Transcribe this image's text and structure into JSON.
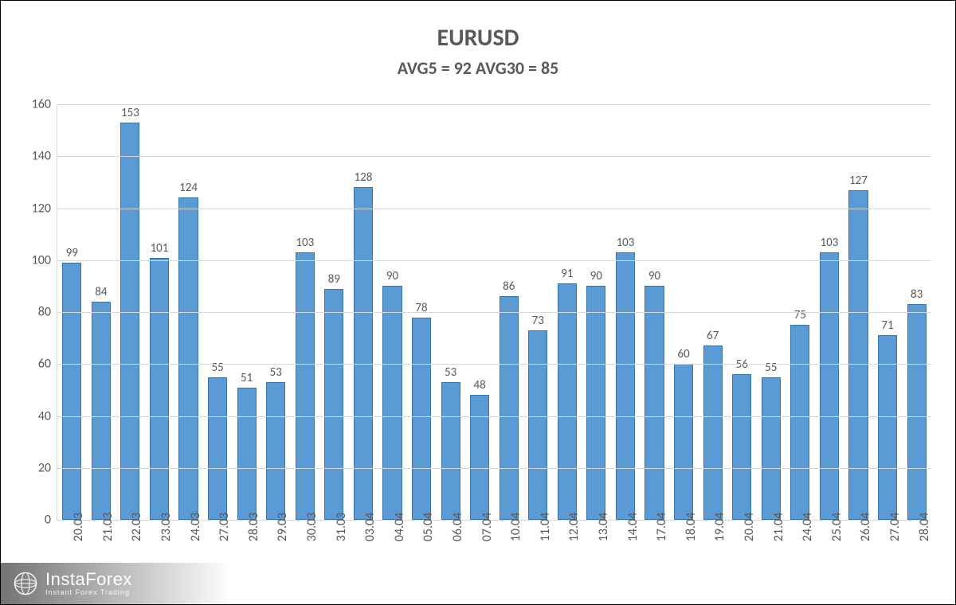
{
  "chart": {
    "type": "bar",
    "title": "EURUSD",
    "title_fontsize": 30,
    "title_color": "#595959",
    "subtitle": "AVG5 = 92 AVG30 = 85",
    "subtitle_fontsize": 22,
    "subtitle_color": "#595959",
    "background_color": "#ffffff",
    "grid_color": "#d9d9d9",
    "axis_color": "#d9d9d9",
    "tick_font_color": "#595959",
    "tick_fontsize": 16,
    "label_font_color": "#595959",
    "label_fontsize": 15,
    "bar_fill": "#5b9bd5",
    "bar_border": "#3a75a8",
    "bar_width": 0.66,
    "ylim": [
      0,
      160
    ],
    "ytick_step": 20,
    "yticks": [
      0,
      20,
      40,
      60,
      80,
      100,
      120,
      140,
      160
    ],
    "categories": [
      "20.03",
      "21.03",
      "22.03",
      "23.03",
      "24.03",
      "27.03",
      "28.03",
      "29.03",
      "30.03",
      "31.03",
      "03.04",
      "04.04",
      "05.04",
      "06.04",
      "07.04",
      "10.04",
      "11.04",
      "12.04",
      "13.04",
      "14.04",
      "17.04",
      "18.04",
      "19.04",
      "20.04",
      "21.04",
      "24.04",
      "25.04",
      "26.04",
      "27.04",
      "28.04"
    ],
    "values": [
      99,
      84,
      153,
      101,
      124,
      55,
      51,
      53,
      103,
      89,
      128,
      90,
      78,
      53,
      48,
      86,
      73,
      91,
      90,
      103,
      90,
      60,
      67,
      56,
      55,
      75,
      103,
      127,
      71,
      83
    ],
    "xlabel_rotation": -90
  },
  "watermark": {
    "brand": "InstaForex",
    "tagline": "Instant Forex Trading",
    "text_color": "#ffffff",
    "bg_gradient_from": "rgba(0,0,0,0.55)",
    "bg_gradient_to": "rgba(0,0,0,0)"
  }
}
